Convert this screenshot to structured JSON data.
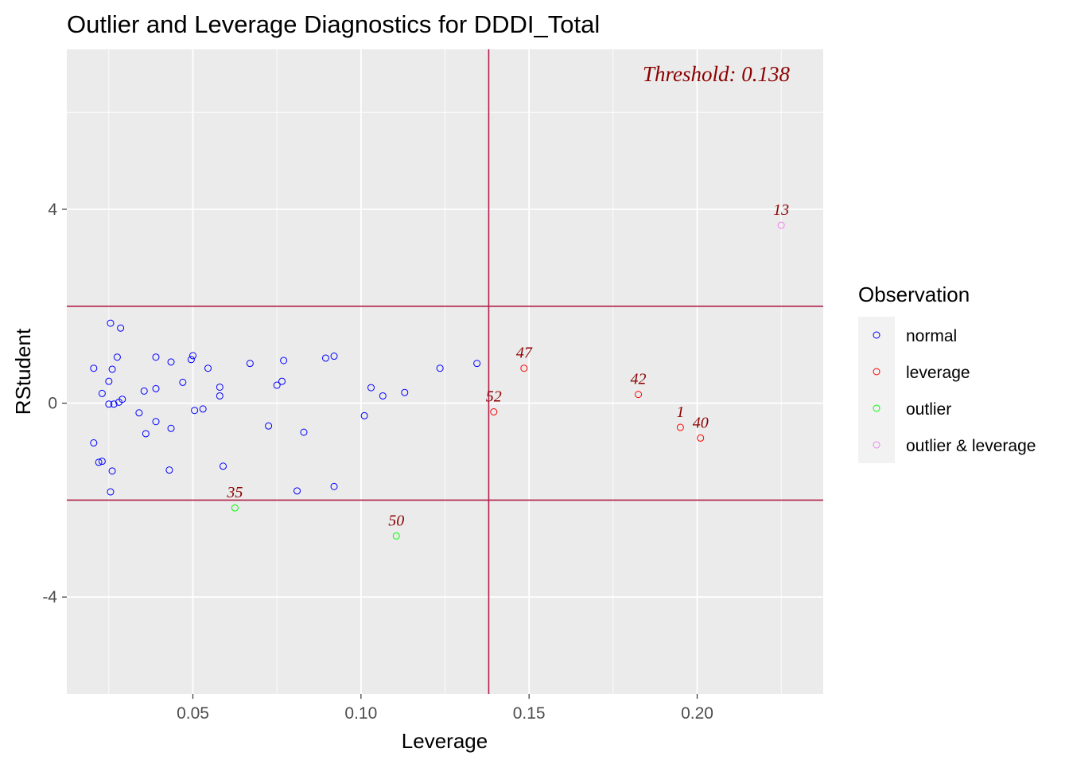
{
  "chart_data": {
    "type": "scatter",
    "title": "Outlier and Leverage Diagnostics for DDDI_Total",
    "xlabel": "Leverage",
    "ylabel": "RStudent",
    "xlim": [
      0.0125,
      0.2375
    ],
    "ylim": [
      -6,
      7.3
    ],
    "x_ticks": [
      0.05,
      0.1,
      0.15,
      0.2
    ],
    "x_tick_labels": [
      "0.05",
      "0.10",
      "0.15",
      "0.20"
    ],
    "y_ticks": [
      -4,
      0,
      4
    ],
    "y_tick_labels": [
      "-4",
      "0",
      "4"
    ],
    "grid": true,
    "threshold_x": 0.138,
    "threshold_y": [
      -2,
      2
    ],
    "threshold_label": "Threshold: 0.138",
    "reference_line_color": "#b0204a",
    "label_color": "#8b0000",
    "legend": {
      "title": "Observation",
      "position": "right",
      "entries": [
        {
          "key": "normal",
          "label": "normal",
          "color": "#0000ff"
        },
        {
          "key": "leverage",
          "label": "leverage",
          "color": "#ff0000"
        },
        {
          "key": "outlier",
          "label": "outlier",
          "color": "#00ff00"
        },
        {
          "key": "outlier_leverage",
          "label": "outlier & leverage",
          "color": "#ee82ee"
        }
      ]
    },
    "points": [
      {
        "x": 0.0205,
        "y": 0.72,
        "group": "normal"
      },
      {
        "x": 0.0205,
        "y": -0.82,
        "group": "normal"
      },
      {
        "x": 0.022,
        "y": -1.22,
        "group": "normal"
      },
      {
        "x": 0.023,
        "y": -1.2,
        "group": "normal"
      },
      {
        "x": 0.023,
        "y": 0.2,
        "group": "normal"
      },
      {
        "x": 0.025,
        "y": 0.45,
        "group": "normal"
      },
      {
        "x": 0.025,
        "y": -0.02,
        "group": "normal"
      },
      {
        "x": 0.0255,
        "y": 1.65,
        "group": "normal"
      },
      {
        "x": 0.0255,
        "y": -1.83,
        "group": "normal"
      },
      {
        "x": 0.026,
        "y": 0.7,
        "group": "normal"
      },
      {
        "x": 0.026,
        "y": -1.4,
        "group": "normal"
      },
      {
        "x": 0.0265,
        "y": -0.02,
        "group": "normal"
      },
      {
        "x": 0.0275,
        "y": 0.95,
        "group": "normal"
      },
      {
        "x": 0.028,
        "y": 0.02,
        "group": "normal"
      },
      {
        "x": 0.0285,
        "y": 1.55,
        "group": "normal"
      },
      {
        "x": 0.029,
        "y": 0.08,
        "group": "normal"
      },
      {
        "x": 0.034,
        "y": -0.2,
        "group": "normal"
      },
      {
        "x": 0.0355,
        "y": 0.25,
        "group": "normal"
      },
      {
        "x": 0.036,
        "y": -0.63,
        "group": "normal"
      },
      {
        "x": 0.039,
        "y": 0.95,
        "group": "normal"
      },
      {
        "x": 0.039,
        "y": 0.3,
        "group": "normal"
      },
      {
        "x": 0.039,
        "y": -0.38,
        "group": "normal"
      },
      {
        "x": 0.043,
        "y": -1.38,
        "group": "normal"
      },
      {
        "x": 0.0435,
        "y": 0.85,
        "group": "normal"
      },
      {
        "x": 0.0435,
        "y": -0.52,
        "group": "normal"
      },
      {
        "x": 0.047,
        "y": 0.43,
        "group": "normal"
      },
      {
        "x": 0.0495,
        "y": 0.9,
        "group": "normal"
      },
      {
        "x": 0.05,
        "y": 0.98,
        "group": "normal"
      },
      {
        "x": 0.0505,
        "y": -0.15,
        "group": "normal"
      },
      {
        "x": 0.053,
        "y": -0.12,
        "group": "normal"
      },
      {
        "x": 0.0545,
        "y": 0.72,
        "group": "normal"
      },
      {
        "x": 0.058,
        "y": 0.33,
        "group": "normal"
      },
      {
        "x": 0.058,
        "y": 0.15,
        "group": "normal"
      },
      {
        "x": 0.059,
        "y": -1.3,
        "group": "normal"
      },
      {
        "x": 0.067,
        "y": 0.82,
        "group": "normal"
      },
      {
        "x": 0.0725,
        "y": -0.47,
        "group": "normal"
      },
      {
        "x": 0.075,
        "y": 0.37,
        "group": "normal"
      },
      {
        "x": 0.0765,
        "y": 0.45,
        "group": "normal"
      },
      {
        "x": 0.077,
        "y": 0.88,
        "group": "normal"
      },
      {
        "x": 0.081,
        "y": -1.81,
        "group": "normal"
      },
      {
        "x": 0.083,
        "y": -0.6,
        "group": "normal"
      },
      {
        "x": 0.0895,
        "y": 0.93,
        "group": "normal"
      },
      {
        "x": 0.092,
        "y": 0.97,
        "group": "normal"
      },
      {
        "x": 0.092,
        "y": -1.72,
        "group": "normal"
      },
      {
        "x": 0.101,
        "y": -0.26,
        "group": "normal"
      },
      {
        "x": 0.103,
        "y": 0.32,
        "group": "normal"
      },
      {
        "x": 0.1065,
        "y": 0.15,
        "group": "normal"
      },
      {
        "x": 0.113,
        "y": 0.22,
        "group": "normal"
      },
      {
        "x": 0.1235,
        "y": 0.72,
        "group": "normal"
      },
      {
        "x": 0.1345,
        "y": 0.82,
        "group": "normal"
      },
      {
        "x": 0.0625,
        "y": -2.16,
        "group": "outlier",
        "label": "35"
      },
      {
        "x": 0.1105,
        "y": -2.74,
        "group": "outlier",
        "label": "50"
      },
      {
        "x": 0.1395,
        "y": -0.18,
        "group": "leverage",
        "label": "52"
      },
      {
        "x": 0.1485,
        "y": 0.72,
        "group": "leverage",
        "label": "47"
      },
      {
        "x": 0.1825,
        "y": 0.18,
        "group": "leverage",
        "label": "42"
      },
      {
        "x": 0.195,
        "y": -0.5,
        "group": "leverage",
        "label": "1"
      },
      {
        "x": 0.201,
        "y": -0.72,
        "group": "leverage",
        "label": "40"
      },
      {
        "x": 0.225,
        "y": 3.67,
        "group": "outlier_leverage",
        "label": "13"
      }
    ]
  }
}
